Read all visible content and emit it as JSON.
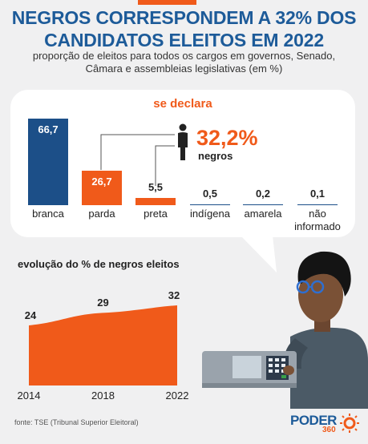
{
  "title": {
    "line1": "NEGROS CORRESPONDEM A 32% DOS",
    "line2": "CANDIDATOS ELEITOS EM 2022"
  },
  "subtitle": {
    "line1": "proporção de eleitos para todos os cargos em governos, Senado,",
    "line2": "Câmara e assembleias legislativas (em %)"
  },
  "colors": {
    "accent": "#f05a1a",
    "brand_blue": "#1d5b99",
    "branca_bar": "#1c4f88"
  },
  "panel": {
    "heading": "se declara",
    "highlight_value": "32,2%",
    "highlight_label": "negros",
    "person_icon": "person-icon"
  },
  "evolution": {
    "title": "evolução do % de negros eleitos"
  },
  "chart_data": [
    {
      "type": "bar",
      "title": "se declara",
      "categories": [
        "branca",
        "parda",
        "preta",
        "indígena",
        "amarela",
        "não informado"
      ],
      "values": [
        66.7,
        26.7,
        5.5,
        0.5,
        0.2,
        0.1
      ],
      "value_labels": [
        "66,7",
        "26,7",
        "5,5",
        "0,5",
        "0,2",
        "0,1"
      ],
      "colors": [
        "#1c4f88",
        "#f05a1a",
        "#f05a1a",
        "#1c4f88",
        "#1c4f88",
        "#1c4f88"
      ],
      "annotation": {
        "text": "32,2%",
        "sub": "negros",
        "groups": [
          "parda",
          "preta"
        ]
      }
    },
    {
      "type": "area",
      "title": "evolução do % de negros eleitos",
      "x": [
        "2014",
        "2018",
        "2022"
      ],
      "values": [
        24,
        29,
        32
      ],
      "color": "#f05a1a"
    }
  ],
  "footer": {
    "source": "fonte: TSE (Tribunal Superior Eleitoral)",
    "logo_text": "PODER",
    "logo_sub": "360"
  }
}
